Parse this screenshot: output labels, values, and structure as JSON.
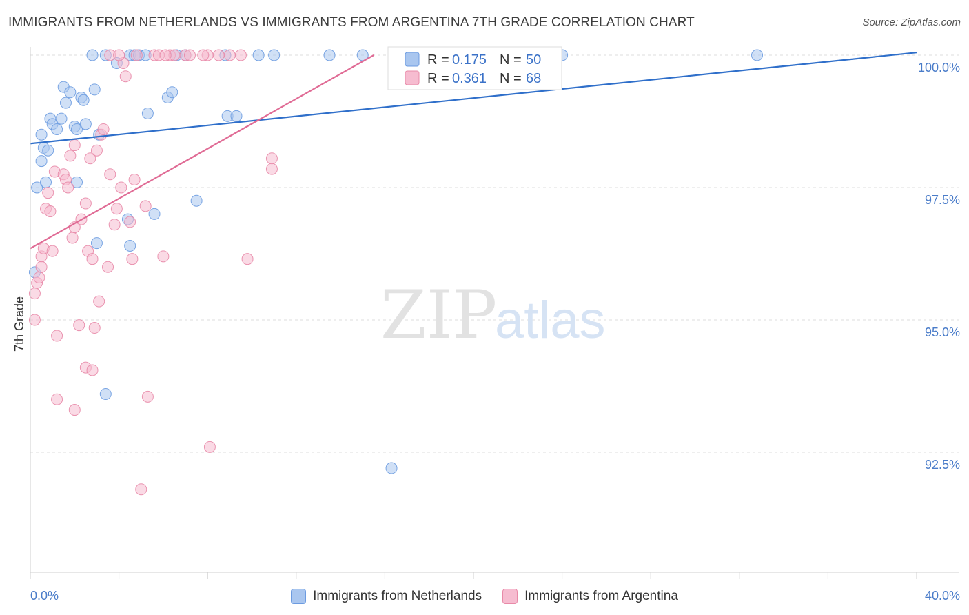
{
  "chart_data": {
    "type": "scatter",
    "title": "IMMIGRANTS FROM NETHERLANDS VS IMMIGRANTS FROM ARGENTINA 7TH GRADE CORRELATION CHART",
    "source": "Source: ZipAtlas.com",
    "xlabel": "",
    "ylabel": "7th Grade",
    "xlim": [
      0.0,
      40.0
    ],
    "ylim": [
      90.2,
      100.2
    ],
    "x_tick_labels": [
      {
        "value": 0.0,
        "label": "0.0%"
      },
      {
        "value": 40.0,
        "label": "40.0%"
      }
    ],
    "y_tick_labels": [
      {
        "value": 100.0,
        "label": "100.0%"
      },
      {
        "value": 97.5,
        "label": "97.5%"
      },
      {
        "value": 95.0,
        "label": "95.0%"
      },
      {
        "value": 92.5,
        "label": "92.5%"
      }
    ],
    "watermark": {
      "zip": "ZIP",
      "atlas": "atlas"
    },
    "legend_stats": [
      {
        "r_label": "R =",
        "r_value": "0.175",
        "n_label": "N =",
        "n_value": "50"
      },
      {
        "r_label": "R =",
        "r_value": "0.361",
        "n_label": "N =",
        "n_value": "68"
      }
    ],
    "series": [
      {
        "name": "Immigrants from Netherlands",
        "color": "#6c9be0",
        "fill": "#a9c6ef",
        "trend_color": "#2f6fca",
        "trend": {
          "x0": 0.0,
          "y0": 98.33,
          "x1": 40.0,
          "y1": 100.05
        },
        "points": [
          [
            0.3,
            97.5
          ],
          [
            0.5,
            98.0
          ],
          [
            0.5,
            98.5
          ],
          [
            0.6,
            98.25
          ],
          [
            0.7,
            97.6
          ],
          [
            0.8,
            98.2
          ],
          [
            0.9,
            98.8
          ],
          [
            1.0,
            98.7
          ],
          [
            1.2,
            98.6
          ],
          [
            1.4,
            98.8
          ],
          [
            1.5,
            99.4
          ],
          [
            1.6,
            99.1
          ],
          [
            1.8,
            99.3
          ],
          [
            2.0,
            98.65
          ],
          [
            2.1,
            98.6
          ],
          [
            2.1,
            97.6
          ],
          [
            2.3,
            99.2
          ],
          [
            2.4,
            99.15
          ],
          [
            2.5,
            98.7
          ],
          [
            2.9,
            99.35
          ],
          [
            3.1,
            98.5
          ],
          [
            3.4,
            100.0
          ],
          [
            3.9,
            99.85
          ],
          [
            4.5,
            100.0
          ],
          [
            4.7,
            100.0
          ],
          [
            4.9,
            100.0
          ],
          [
            5.3,
            98.9
          ],
          [
            5.6,
            97.0
          ],
          [
            6.2,
            99.2
          ],
          [
            6.4,
            99.3
          ],
          [
            6.6,
            100.0
          ],
          [
            7.0,
            100.0
          ],
          [
            7.5,
            97.25
          ],
          [
            8.8,
            100.0
          ],
          [
            8.9,
            98.85
          ],
          [
            9.3,
            98.85
          ],
          [
            10.3,
            100.0
          ],
          [
            11.0,
            100.0
          ],
          [
            13.5,
            100.0
          ],
          [
            15.0,
            100.0
          ],
          [
            3.0,
            96.45
          ],
          [
            4.5,
            96.4
          ],
          [
            4.4,
            96.9
          ],
          [
            3.4,
            93.6
          ],
          [
            16.3,
            92.2
          ],
          [
            24.0,
            100.0
          ],
          [
            32.8,
            100.0
          ],
          [
            0.2,
            95.9
          ],
          [
            2.8,
            100.0
          ],
          [
            5.2,
            100.0
          ]
        ]
      },
      {
        "name": "Immigrants from Argentina",
        "color": "#e88aa8",
        "fill": "#f6bcd0",
        "trend_color": "#e06b95",
        "trend": {
          "x0": 0.0,
          "y0": 96.35,
          "x1": 15.5,
          "y1": 100.0
        },
        "points": [
          [
            0.2,
            95.0
          ],
          [
            0.2,
            95.5
          ],
          [
            0.3,
            95.7
          ],
          [
            0.4,
            95.8
          ],
          [
            0.5,
            96.2
          ],
          [
            0.5,
            96.0
          ],
          [
            0.6,
            96.35
          ],
          [
            0.7,
            97.1
          ],
          [
            0.8,
            97.4
          ],
          [
            0.9,
            97.05
          ],
          [
            1.0,
            96.3
          ],
          [
            1.1,
            97.8
          ],
          [
            1.2,
            94.7
          ],
          [
            1.5,
            97.75
          ],
          [
            1.6,
            97.65
          ],
          [
            1.7,
            97.5
          ],
          [
            1.8,
            98.1
          ],
          [
            1.9,
            96.55
          ],
          [
            2.0,
            98.3
          ],
          [
            2.0,
            96.75
          ],
          [
            2.2,
            94.9
          ],
          [
            2.3,
            96.9
          ],
          [
            2.5,
            97.2
          ],
          [
            2.5,
            94.1
          ],
          [
            2.6,
            96.3
          ],
          [
            2.7,
            98.05
          ],
          [
            2.8,
            96.15
          ],
          [
            2.9,
            94.85
          ],
          [
            3.0,
            98.2
          ],
          [
            3.1,
            95.35
          ],
          [
            3.2,
            98.5
          ],
          [
            3.3,
            98.6
          ],
          [
            3.5,
            96.0
          ],
          [
            3.6,
            97.75
          ],
          [
            3.8,
            96.8
          ],
          [
            3.9,
            97.1
          ],
          [
            4.1,
            97.5
          ],
          [
            4.2,
            99.85
          ],
          [
            4.3,
            99.6
          ],
          [
            4.5,
            96.85
          ],
          [
            4.6,
            96.15
          ],
          [
            4.7,
            97.65
          ],
          [
            4.8,
            100.0
          ],
          [
            5.0,
            91.8
          ],
          [
            5.2,
            97.15
          ],
          [
            5.3,
            93.55
          ],
          [
            5.6,
            100.0
          ],
          [
            5.8,
            100.0
          ],
          [
            6.0,
            96.2
          ],
          [
            6.3,
            100.0
          ],
          [
            6.5,
            100.0
          ],
          [
            7.0,
            100.0
          ],
          [
            7.2,
            100.0
          ],
          [
            8.0,
            100.0
          ],
          [
            8.1,
            92.6
          ],
          [
            8.5,
            100.0
          ],
          [
            9.0,
            100.0
          ],
          [
            9.8,
            96.15
          ],
          [
            10.9,
            98.05
          ],
          [
            10.9,
            97.85
          ],
          [
            1.2,
            93.5
          ],
          [
            2.0,
            93.3
          ],
          [
            2.8,
            94.05
          ],
          [
            3.6,
            100.0
          ],
          [
            4.0,
            100.0
          ],
          [
            6.1,
            100.0
          ],
          [
            7.8,
            100.0
          ],
          [
            9.5,
            100.0
          ]
        ]
      }
    ]
  }
}
